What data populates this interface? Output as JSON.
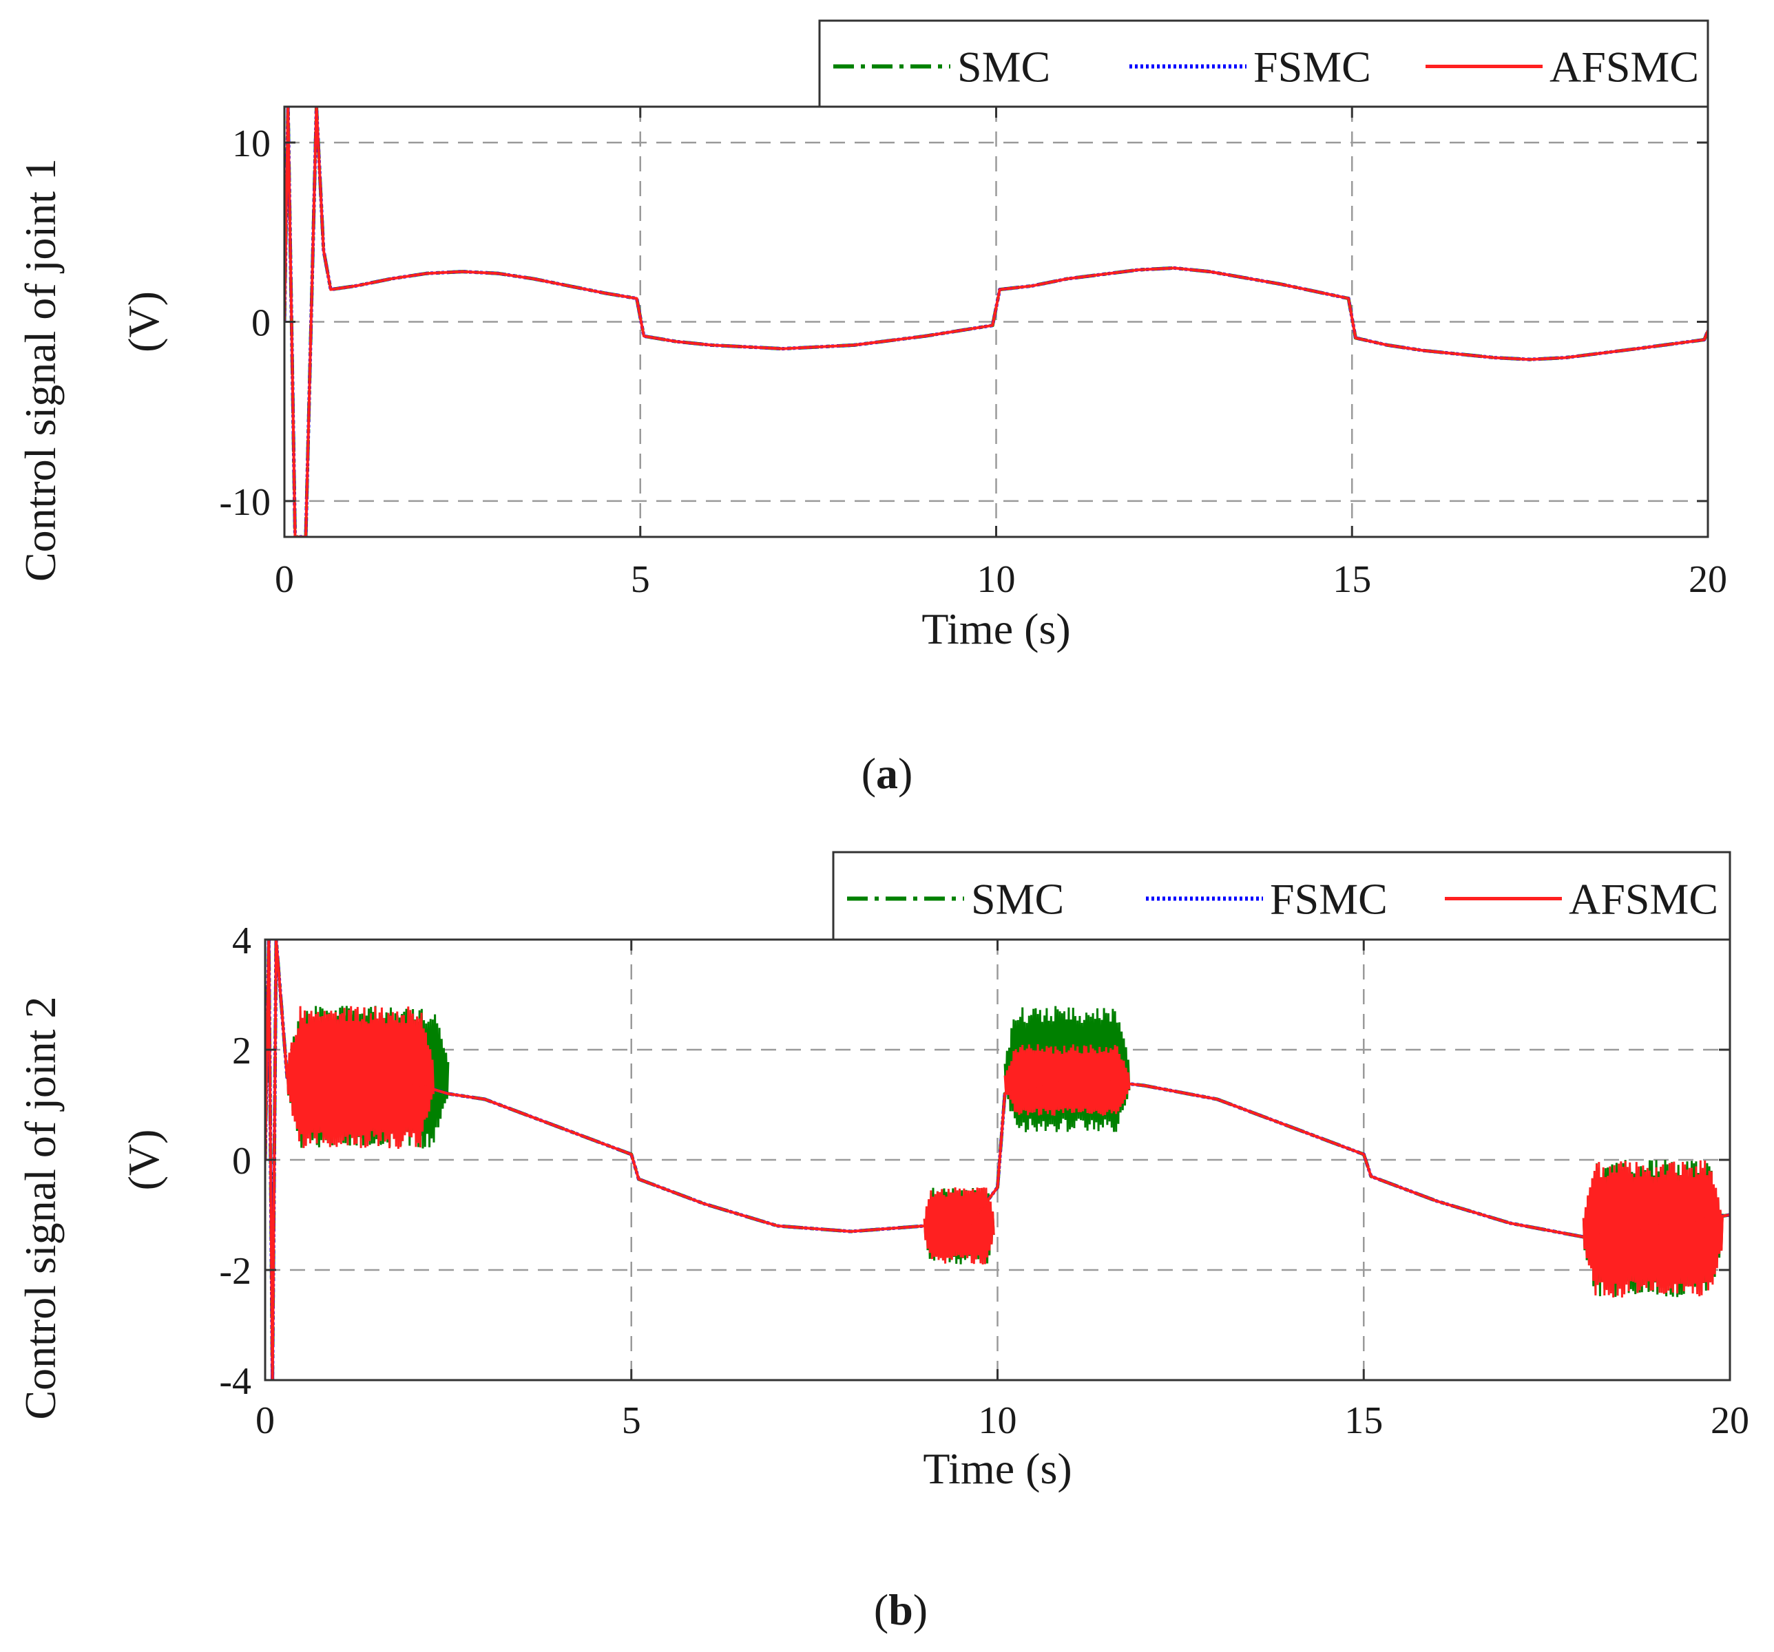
{
  "figure": {
    "captions": [
      {
        "open": "(",
        "letter": "a",
        "close": ")"
      },
      {
        "open": "(",
        "letter": "b",
        "close": ")"
      }
    ]
  },
  "colors": {
    "SMC": "#008000",
    "FSMC": "#0000ff",
    "AFSMC": "#ff2020",
    "grid": "#9a9a9a",
    "axis": "#333333"
  },
  "chart_data": [
    {
      "type": "line",
      "title": "",
      "xlabel": "Time (s)",
      "ylabel_line1": "Control signal of joint 1",
      "ylabel_line2": "(V)",
      "xlim": [
        0,
        20
      ],
      "ylim": [
        -12,
        12
      ],
      "xticks": [
        0,
        5,
        10,
        15,
        20
      ],
      "xtick_labels": [
        "0",
        "5",
        "10",
        "15",
        "20"
      ],
      "yticks": [
        10,
        0,
        -10
      ],
      "ytick_labels": [
        "10",
        "0",
        "-10"
      ],
      "grid": true,
      "legend_position": "top-right-outside",
      "series": [
        {
          "name": "SMC",
          "style": "dash-dot",
          "x": [
            0,
            0.05,
            0.15,
            0.3,
            0.45,
            0.55,
            0.65,
            1,
            1.5,
            2,
            2.5,
            3,
            3.5,
            4,
            4.5,
            4.95,
            5.05,
            5.5,
            6,
            7,
            8,
            9,
            9.95,
            10.05,
            10.5,
            11,
            12,
            12.5,
            13,
            14,
            14.95,
            15.05,
            15.5,
            16,
            17,
            17.5,
            18,
            19,
            19.95,
            20
          ],
          "values": [
            0,
            12,
            -12,
            -12,
            12,
            4,
            1.8,
            2.0,
            2.4,
            2.7,
            2.8,
            2.7,
            2.4,
            2.0,
            1.6,
            1.3,
            -0.8,
            -1.1,
            -1.3,
            -1.5,
            -1.3,
            -0.8,
            -0.2,
            1.8,
            2.0,
            2.4,
            2.9,
            3.0,
            2.8,
            2.1,
            1.3,
            -0.9,
            -1.3,
            -1.6,
            -2.0,
            -2.1,
            -2.0,
            -1.5,
            -1.0,
            -0.5
          ]
        },
        {
          "name": "FSMC",
          "style": "dotted",
          "x": [
            0,
            0.05,
            0.15,
            0.3,
            0.45,
            0.55,
            0.65,
            1,
            1.5,
            2,
            2.5,
            3,
            3.5,
            4,
            4.5,
            4.95,
            5.05,
            5.5,
            6,
            7,
            8,
            9,
            9.95,
            10.05,
            10.5,
            11,
            12,
            12.5,
            13,
            14,
            14.95,
            15.05,
            15.5,
            16,
            17,
            17.5,
            18,
            19,
            19.95,
            20
          ],
          "values": [
            0,
            12,
            -12,
            -12,
            12,
            4,
            1.8,
            2.0,
            2.4,
            2.7,
            2.8,
            2.7,
            2.4,
            2.0,
            1.6,
            1.3,
            -0.8,
            -1.1,
            -1.3,
            -1.5,
            -1.3,
            -0.8,
            -0.2,
            1.8,
            2.0,
            2.4,
            2.9,
            3.0,
            2.8,
            2.1,
            1.3,
            -0.9,
            -1.3,
            -1.6,
            -2.0,
            -2.1,
            -2.0,
            -1.5,
            -1.0,
            -0.5
          ]
        },
        {
          "name": "AFSMC",
          "style": "solid",
          "x": [
            0,
            0.05,
            0.15,
            0.3,
            0.45,
            0.55,
            0.65,
            1,
            1.5,
            2,
            2.5,
            3,
            3.5,
            4,
            4.5,
            4.95,
            5.05,
            5.5,
            6,
            7,
            8,
            9,
            9.95,
            10.05,
            10.5,
            11,
            12,
            12.5,
            13,
            14,
            14.95,
            15.05,
            15.5,
            16,
            17,
            17.5,
            18,
            19,
            19.95,
            20
          ],
          "values": [
            0,
            12,
            -12,
            -12,
            12,
            4,
            1.8,
            2.0,
            2.4,
            2.7,
            2.8,
            2.7,
            2.4,
            2.0,
            1.6,
            1.3,
            -0.8,
            -1.1,
            -1.3,
            -1.5,
            -1.3,
            -0.8,
            -0.2,
            1.8,
            2.0,
            2.4,
            2.9,
            3.0,
            2.8,
            2.1,
            1.3,
            -0.9,
            -1.3,
            -1.6,
            -2.0,
            -2.1,
            -2.0,
            -1.5,
            -1.0,
            -0.5
          ]
        }
      ]
    },
    {
      "type": "line",
      "title": "",
      "xlabel": "Time (s)",
      "ylabel_line1": "Control signal of joint 2",
      "ylabel_line2": "(V)",
      "xlim": [
        0,
        20
      ],
      "ylim": [
        -4,
        4
      ],
      "xticks": [
        0,
        5,
        10,
        15,
        20
      ],
      "xtick_labels": [
        "0",
        "5",
        "10",
        "15",
        "20"
      ],
      "yticks": [
        4,
        2,
        0,
        -2,
        -4
      ],
      "ytick_labels": [
        "4",
        "2",
        "0",
        "-2",
        "-4"
      ],
      "grid": true,
      "legend_position": "top-right-outside",
      "series": [
        {
          "name": "SMC",
          "style": "dash-dot",
          "x": [
            0,
            0.05,
            0.1,
            0.15,
            0.3,
            1,
            2,
            2.5,
            3,
            4,
            5,
            5.1,
            6,
            7,
            8,
            9,
            9.6,
            10,
            10.1,
            11,
            12,
            13,
            14,
            15,
            15.1,
            16,
            17,
            18,
            19,
            20
          ],
          "values": [
            0,
            4,
            -4,
            4,
            1.5,
            1.5,
            1.4,
            1.2,
            1.1,
            0.6,
            0.1,
            -0.35,
            -0.8,
            -1.2,
            -1.3,
            -1.2,
            -1.2,
            -0.5,
            1.2,
            1.5,
            1.35,
            1.1,
            0.6,
            0.1,
            -0.3,
            -0.75,
            -1.15,
            -1.4,
            -1.2,
            -1.0
          ],
          "oscillation_bands": [
            {
              "t_start": 0.3,
              "t_end": 2.5,
              "center": 1.5,
              "upper": 2.8,
              "lower": 0.2
            },
            {
              "t_start": 9.0,
              "t_end": 9.95,
              "center": -1.2,
              "upper": -0.5,
              "lower": -1.9
            },
            {
              "t_start": 10.1,
              "t_end": 11.8,
              "center": 1.5,
              "upper": 2.8,
              "lower": 0.5
            },
            {
              "t_start": 18.0,
              "t_end": 19.9,
              "center": -1.3,
              "upper": 0.0,
              "lower": -2.5
            }
          ]
        },
        {
          "name": "FSMC",
          "style": "dotted",
          "x": [
            0,
            0.05,
            0.1,
            0.15,
            0.3,
            1,
            2,
            2.5,
            3,
            4,
            5,
            5.1,
            6,
            7,
            8,
            9,
            9.6,
            10,
            10.1,
            11,
            12,
            13,
            14,
            15,
            15.1,
            16,
            17,
            18,
            19,
            20
          ],
          "values": [
            0,
            4,
            -4,
            4,
            1.5,
            1.5,
            1.4,
            1.2,
            1.1,
            0.6,
            0.1,
            -0.35,
            -0.8,
            -1.2,
            -1.3,
            -1.2,
            -1.2,
            -0.5,
            1.2,
            1.5,
            1.35,
            1.1,
            0.6,
            0.1,
            -0.3,
            -0.75,
            -1.15,
            -1.4,
            -1.2,
            -1.0
          ]
        },
        {
          "name": "AFSMC",
          "style": "solid",
          "x": [
            0,
            0.05,
            0.1,
            0.15,
            0.3,
            1,
            2,
            2.5,
            3,
            4,
            5,
            5.1,
            6,
            7,
            8,
            9,
            9.6,
            10,
            10.1,
            11,
            12,
            13,
            14,
            15,
            15.1,
            16,
            17,
            18,
            19,
            20
          ],
          "values": [
            0,
            4,
            -4,
            4,
            1.5,
            1.5,
            1.4,
            1.2,
            1.1,
            0.6,
            0.1,
            -0.35,
            -0.8,
            -1.2,
            -1.3,
            -1.2,
            -1.2,
            -0.5,
            1.2,
            1.5,
            1.35,
            1.1,
            0.6,
            0.1,
            -0.3,
            -0.75,
            -1.15,
            -1.4,
            -1.2,
            -1.0
          ],
          "oscillation_bands": [
            {
              "t_start": 0.3,
              "t_end": 2.3,
              "center": 1.5,
              "upper": 2.8,
              "lower": 0.2
            },
            {
              "t_start": 9.0,
              "t_end": 9.95,
              "center": -1.2,
              "upper": -0.5,
              "lower": -1.9
            },
            {
              "t_start": 10.1,
              "t_end": 11.8,
              "center": 1.4,
              "upper": 2.1,
              "lower": 0.8
            },
            {
              "t_start": 18.0,
              "t_end": 19.9,
              "center": -1.3,
              "upper": 0.0,
              "lower": -2.5
            }
          ]
        }
      ]
    }
  ]
}
